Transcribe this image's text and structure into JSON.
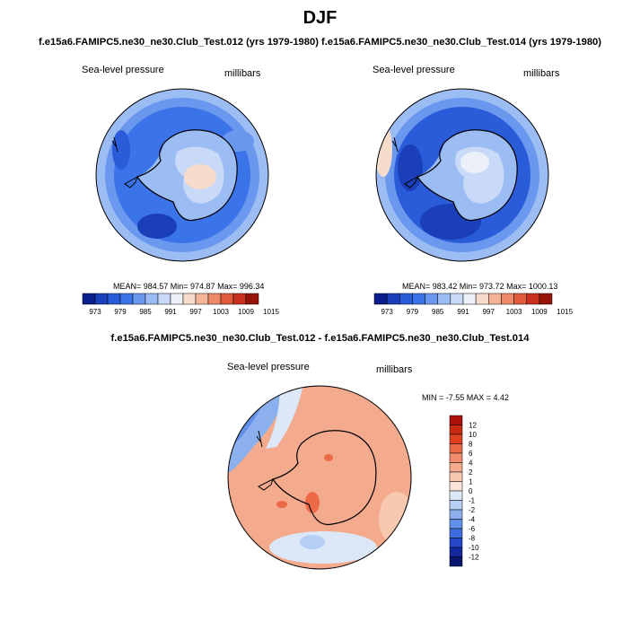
{
  "page": {
    "title": "DJF",
    "subtitle_top": "f.e15a6.FAMIPC5.ne30_ne30.Club_Test.012 (yrs 1979-1980)  f.e15a6.FAMIPC5.ne30_ne30.Club_Test.014 (yrs 1979-1980)",
    "subtitle_diff": "f.e15a6.FAMIPC5.ne30_ne30.Club_Test.012 - f.e15a6.FAMIPC5.ne30_ne30.Club_Test.014"
  },
  "panels": [
    {
      "id": "test012",
      "variable": "Sea-level pressure",
      "units": "millibars",
      "stats": "MEAN= 984.57  Min= 974.87  Max= 996.34"
    },
    {
      "id": "test014",
      "variable": "Sea-level pressure",
      "units": "millibars",
      "stats": "MEAN= 983.42  Min= 973.72  Max= 1000.13"
    },
    {
      "id": "difference",
      "variable": "Sea-level pressure",
      "units": "millibars",
      "stats": "MIN =  -7.55 MAX =   4.42"
    }
  ],
  "colorbars": {
    "abs": {
      "colors": [
        "#0a1e8c",
        "#1a3fb8",
        "#2a5bd8",
        "#3b74e8",
        "#6a98ee",
        "#9cbcf4",
        "#c8daf8",
        "#ecf0f8",
        "#f8dccb",
        "#f4b498",
        "#ec8a6a",
        "#e05a3c",
        "#c83020",
        "#961408"
      ],
      "tick_labels": [
        "973",
        "979",
        "985",
        "991",
        "997",
        "1003",
        "1009",
        "1015"
      ]
    },
    "diff": {
      "colors_top_to_bottom": [
        "#a81008",
        "#c82810",
        "#e04020",
        "#ec6a48",
        "#f08c6c",
        "#f4aa8c",
        "#f8c8b0",
        "#fbe4d8",
        "#dce8f8",
        "#b4cef4",
        "#8cb0ee",
        "#6290e8",
        "#3c6ce0",
        "#2448c8",
        "#12289c",
        "#081670"
      ],
      "tick_labels": [
        "12",
        "10",
        "8",
        "6",
        "4",
        "2",
        "1",
        "0",
        "-1",
        "-2",
        "-4",
        "-6",
        "-8",
        "-10",
        "-12"
      ]
    }
  },
  "colors": {
    "ocean_deep": "#1f4fd0",
    "ocean_mid": "#3b74e8",
    "antarctica_light": "#d0e0f8",
    "diff_positive": "#f4aa8c",
    "diff_negative": "#8cb0ee"
  }
}
